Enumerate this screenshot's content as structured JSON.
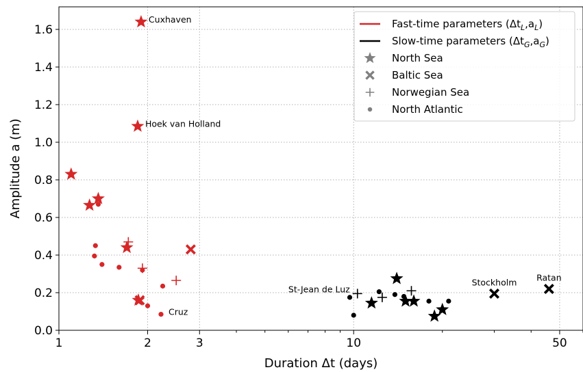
{
  "chart_data": {
    "type": "scatter",
    "xlabel": "Duration Δt (days)",
    "ylabel": "Amplitude a (m)",
    "xscale": "log",
    "xlim": [
      1,
      60
    ],
    "ylim": [
      0,
      1.72
    ],
    "xticks": [
      {
        "v": 1,
        "label": "1"
      },
      {
        "v": 2,
        "label": "2"
      },
      {
        "v": 3,
        "label": "3"
      },
      {
        "v": 10,
        "label": "10"
      },
      {
        "v": 50,
        "label": "50"
      }
    ],
    "yticks": [
      {
        "v": 0.0,
        "label": "0.0"
      },
      {
        "v": 0.2,
        "label": "0.2"
      },
      {
        "v": 0.4,
        "label": "0.4"
      },
      {
        "v": 0.6,
        "label": "0.6"
      },
      {
        "v": 0.8,
        "label": "0.8"
      },
      {
        "v": 1.0,
        "label": "1.0"
      },
      {
        "v": 1.2,
        "label": "1.2"
      },
      {
        "v": 1.4,
        "label": "1.4"
      },
      {
        "v": 1.6,
        "label": "1.6"
      }
    ],
    "grid": true,
    "legend_position": "top-right",
    "colors": {
      "fast": "#d62728",
      "slow": "#000000",
      "legend_marker": "#808080"
    },
    "legend": [
      {
        "kind": "line",
        "color": "#d62728",
        "label": "Fast-time parameters (Δt",
        "sub1": "L",
        "mid": ",a",
        "sub2": "L",
        "end": ")"
      },
      {
        "kind": "line",
        "color": "#000000",
        "label": "Slow-time parameters (Δt",
        "sub1": "G",
        "mid": ",a",
        "sub2": "G",
        "end": ")"
      },
      {
        "kind": "marker",
        "marker": "star",
        "label": "North Sea"
      },
      {
        "kind": "marker",
        "marker": "x",
        "label": "Baltic Sea"
      },
      {
        "kind": "marker",
        "marker": "plus",
        "label": "Norwegian Sea"
      },
      {
        "kind": "marker",
        "marker": "dot",
        "label": "North Atlantic"
      }
    ],
    "series": [
      {
        "name": "Fast-time parameters (Δt_L,a_L)",
        "color": "#d62728",
        "points": [
          {
            "x": 1.9,
            "y": 1.64,
            "m": "star"
          },
          {
            "x": 1.85,
            "y": 1.085,
            "m": "star"
          },
          {
            "x": 1.1,
            "y": 0.83,
            "m": "star"
          },
          {
            "x": 1.36,
            "y": 0.7,
            "m": "star"
          },
          {
            "x": 1.27,
            "y": 0.665,
            "m": "star"
          },
          {
            "x": 1.7,
            "y": 0.44,
            "m": "star"
          },
          {
            "x": 1.86,
            "y": 0.16,
            "m": "star"
          },
          {
            "x": 2.8,
            "y": 0.43,
            "m": "x"
          },
          {
            "x": 1.88,
            "y": 0.16,
            "m": "x"
          },
          {
            "x": 1.72,
            "y": 0.47,
            "m": "plus"
          },
          {
            "x": 1.92,
            "y": 0.33,
            "m": "plus"
          },
          {
            "x": 2.5,
            "y": 0.265,
            "m": "plus"
          },
          {
            "x": 1.33,
            "y": 0.45,
            "m": "dot"
          },
          {
            "x": 1.32,
            "y": 0.395,
            "m": "dot"
          },
          {
            "x": 1.4,
            "y": 0.35,
            "m": "dot"
          },
          {
            "x": 1.6,
            "y": 0.335,
            "m": "dot"
          },
          {
            "x": 1.92,
            "y": 0.32,
            "m": "dot"
          },
          {
            "x": 2.25,
            "y": 0.235,
            "m": "dot"
          },
          {
            "x": 2.0,
            "y": 0.13,
            "m": "dot"
          },
          {
            "x": 2.22,
            "y": 0.085,
            "m": "dot"
          },
          {
            "x": 1.36,
            "y": 0.67,
            "m": "dot"
          }
        ]
      },
      {
        "name": "Slow-time parameters (Δt_G,a_G)",
        "color": "#000000",
        "points": [
          {
            "x": 14.0,
            "y": 0.275,
            "m": "star"
          },
          {
            "x": 11.5,
            "y": 0.145,
            "m": "star"
          },
          {
            "x": 15.0,
            "y": 0.155,
            "m": "star"
          },
          {
            "x": 16.0,
            "y": 0.155,
            "m": "star"
          },
          {
            "x": 18.8,
            "y": 0.075,
            "m": "star"
          },
          {
            "x": 20.0,
            "y": 0.11,
            "m": "star"
          },
          {
            "x": 30.0,
            "y": 0.195,
            "m": "x"
          },
          {
            "x": 46.0,
            "y": 0.22,
            "m": "x"
          },
          {
            "x": 10.3,
            "y": 0.195,
            "m": "plus"
          },
          {
            "x": 12.5,
            "y": 0.175,
            "m": "plus"
          },
          {
            "x": 15.7,
            "y": 0.21,
            "m": "plus"
          },
          {
            "x": 9.7,
            "y": 0.175,
            "m": "dot"
          },
          {
            "x": 10.0,
            "y": 0.08,
            "m": "dot"
          },
          {
            "x": 12.2,
            "y": 0.205,
            "m": "dot"
          },
          {
            "x": 13.8,
            "y": 0.19,
            "m": "dot"
          },
          {
            "x": 14.8,
            "y": 0.18,
            "m": "dot"
          },
          {
            "x": 18.0,
            "y": 0.155,
            "m": "dot"
          },
          {
            "x": 21.0,
            "y": 0.155,
            "m": "dot"
          }
        ]
      }
    ],
    "annotations": [
      {
        "text": "Cuxhaven",
        "x": 1.9,
        "y": 1.64,
        "pos": "right"
      },
      {
        "text": "Hoek van Holland",
        "x": 1.85,
        "y": 1.085,
        "pos": "right"
      },
      {
        "text": "Cruz",
        "x": 2.22,
        "y": 0.085,
        "pos": "right"
      },
      {
        "text": "St-Jean de Luz",
        "x": 10.3,
        "y": 0.195,
        "pos": "left"
      },
      {
        "text": "Stockholm",
        "x": 30.0,
        "y": 0.195,
        "pos": "above"
      },
      {
        "text": "Ratan",
        "x": 46.0,
        "y": 0.22,
        "pos": "above"
      }
    ]
  }
}
